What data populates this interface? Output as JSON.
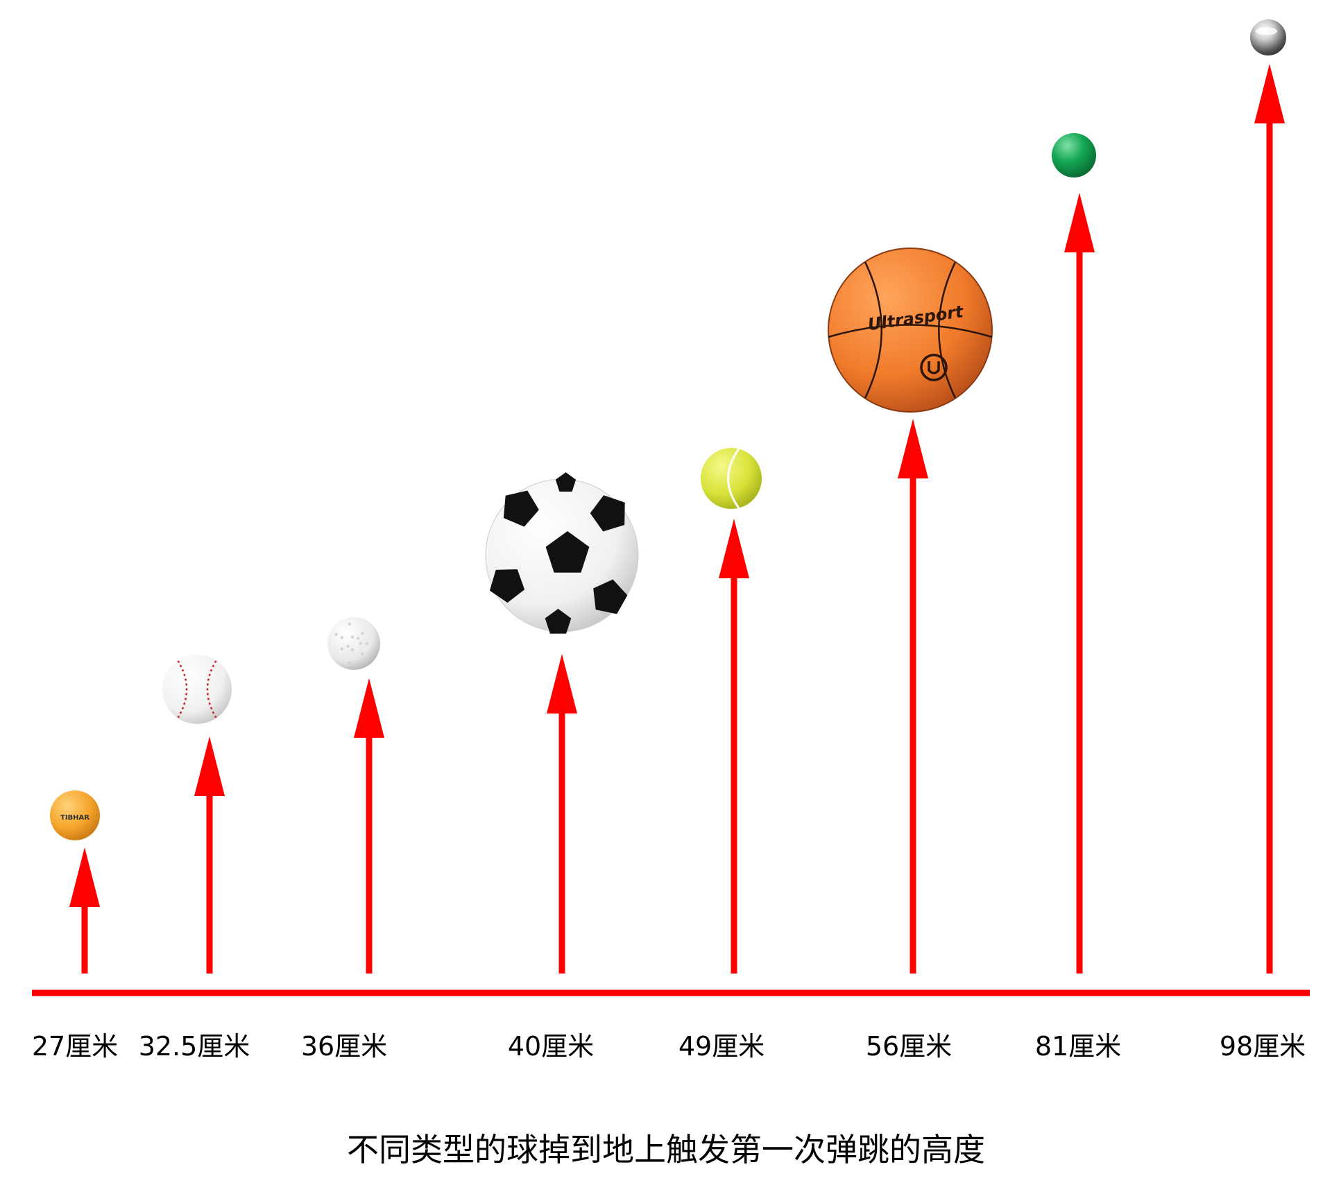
{
  "chart_data": {
    "type": "bar",
    "title": "不同类型的球掉到地上触发第一次弹跳的高度",
    "xlabel": "",
    "ylabel": "",
    "unit": "厘米",
    "categories": [
      "27厘米",
      "32.5厘米",
      "36厘米",
      "40厘米",
      "49厘米",
      "56厘米",
      "81厘米",
      "98厘米"
    ],
    "values": [
      27,
      32.5,
      36,
      40,
      49,
      56,
      81,
      98
    ],
    "balls": [
      "ping-pong-ball",
      "baseball",
      "golf-ball",
      "soccer-ball",
      "tennis-ball",
      "basketball",
      "green-rubber-ball",
      "steel-ball"
    ],
    "basketball_brand": "Ultrasport",
    "pingpong_brand": "TIBHAR",
    "grid": false,
    "legend": "none",
    "colors": {
      "arrow": "#ff0000",
      "baseline": "#ff0000"
    }
  }
}
